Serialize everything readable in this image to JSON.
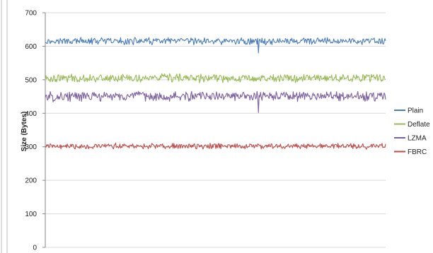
{
  "chart_data": {
    "type": "line",
    "title": "",
    "xlabel": "",
    "ylabel": "Size (Bytes)",
    "ylim": [
      0,
      700
    ],
    "yticks": [
      0,
      100,
      200,
      300,
      400,
      500,
      600,
      700
    ],
    "grid": true,
    "legend": "right",
    "x_points": 480,
    "series": [
      {
        "name": "Plain",
        "color": "#4a7ebb",
        "mean": 615,
        "amplitude": 10,
        "spikes": [
          {
            "i": 300,
            "value": 580
          }
        ]
      },
      {
        "name": "Deflate",
        "color": "#98b954",
        "mean": 505,
        "amplitude": 12,
        "spikes": []
      },
      {
        "name": "LZMA",
        "color": "#7d60a0",
        "mean": 450,
        "amplitude": 14,
        "spikes": [
          {
            "i": 300,
            "value": 402
          }
        ]
      },
      {
        "name": "FBRC",
        "color": "#be4b48",
        "mean": 302,
        "amplitude": 8,
        "spikes": []
      }
    ]
  }
}
